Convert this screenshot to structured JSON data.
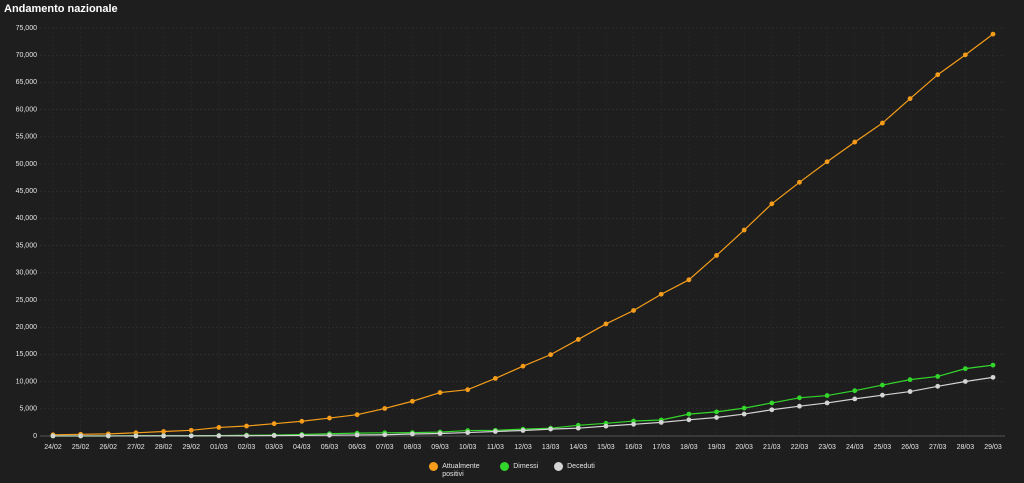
{
  "chart_data": {
    "type": "line",
    "title": "Andamento nazionale",
    "categories": [
      "24/02",
      "25/02",
      "26/02",
      "27/02",
      "28/02",
      "29/02",
      "01/03",
      "02/03",
      "03/03",
      "04/03",
      "05/03",
      "06/03",
      "07/03",
      "08/03",
      "09/03",
      "10/03",
      "11/03",
      "12/03",
      "13/03",
      "14/03",
      "15/03",
      "16/03",
      "17/03",
      "18/03",
      "19/03",
      "20/03",
      "21/03",
      "22/03",
      "23/03",
      "24/03",
      "25/03",
      "26/03",
      "27/03",
      "28/03",
      "29/03"
    ],
    "series": [
      {
        "name": "Attualmente positivi",
        "color": "#f59d1a",
        "values": [
          221,
          311,
          385,
          588,
          821,
          1049,
          1577,
          1835,
          2263,
          2706,
          3296,
          3916,
          5061,
          6387,
          7985,
          8514,
          10590,
          12839,
          14955,
          17750,
          20603,
          23073,
          26062,
          28710,
          33190,
          37860,
          42681,
          46638,
          50418,
          54030,
          57521,
          62013,
          66414,
          70065,
          73880
        ]
      },
      {
        "name": "Dimessi",
        "color": "#33d62b",
        "values": [
          1,
          1,
          3,
          45,
          46,
          50,
          83,
          149,
          160,
          276,
          414,
          523,
          589,
          622,
          724,
          1004,
          1045,
          1258,
          1439,
          1966,
          2335,
          2749,
          2941,
          4025,
          4440,
          5129,
          6072,
          7024,
          7432,
          8326,
          9362,
          10361,
          10950,
          12384,
          13030
        ]
      },
      {
        "name": "Deceduti",
        "color": "#d4d4d4",
        "values": [
          7,
          10,
          12,
          17,
          21,
          29,
          34,
          52,
          79,
          107,
          148,
          197,
          233,
          366,
          463,
          631,
          827,
          1016,
          1266,
          1441,
          1809,
          2158,
          2503,
          2978,
          3405,
          4032,
          4825,
          5476,
          6077,
          6820,
          7503,
          8165,
          9134,
          10023,
          10779
        ]
      }
    ],
    "ylim": [
      0,
      75000
    ],
    "yticks": [
      0,
      {
        "value": 5000,
        "label": "5,000"
      },
      {
        "value": 10000,
        "label": "10,000"
      },
      {
        "value": 15000,
        "label": "15,000"
      },
      {
        "value": 20000,
        "label": "20,000"
      },
      {
        "value": 25000,
        "label": "25,000"
      },
      {
        "value": 30000,
        "label": "30,000"
      },
      {
        "value": 35000,
        "label": "35,000"
      },
      {
        "value": 40000,
        "label": "40,000"
      },
      {
        "value": 45000,
        "label": "45,000"
      },
      {
        "value": 50000,
        "label": "50,000"
      },
      {
        "value": 55000,
        "label": "55,000"
      },
      {
        "value": 60000,
        "label": "60,000"
      },
      {
        "value": 65000,
        "label": "65,000"
      },
      {
        "value": 70000,
        "label": "70,000"
      },
      {
        "value": 75000,
        "label": "75,000"
      }
    ],
    "grid": true
  }
}
